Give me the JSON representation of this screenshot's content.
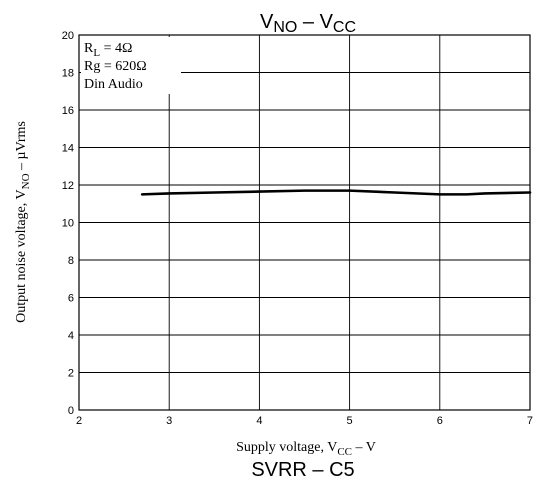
{
  "chart_data": {
    "type": "line",
    "title_main": "V",
    "title_main_sub": "NO",
    "title_sep": " – ",
    "title_second": "V",
    "title_second_sub": "CC",
    "xlabel_prefix": "Supply voltage, V",
    "xlabel_sub": "CC",
    "xlabel_suffix": " – V",
    "ylabel_prefix": "Output noise voltage, V",
    "ylabel_sub": "NO",
    "ylabel_suffix": " – µVrms",
    "xlim": [
      2,
      7
    ],
    "ylim": [
      0,
      20
    ],
    "xticks": [
      2,
      3,
      4,
      5,
      6,
      7
    ],
    "yticks": [
      0,
      2,
      4,
      6,
      8,
      10,
      12,
      14,
      16,
      18,
      20
    ],
    "grid": true,
    "series": [
      {
        "x": [
          2.7,
          3.0,
          3.5,
          4.0,
          4.5,
          5.0,
          5.5,
          6.0,
          6.3,
          6.5,
          7.0
        ],
        "y": [
          11.5,
          11.55,
          11.6,
          11.65,
          11.7,
          11.7,
          11.6,
          11.5,
          11.5,
          11.55,
          11.6
        ]
      }
    ],
    "annotations": [
      {
        "prefix": "R",
        "sub": "L",
        "suffix": " = 4Ω"
      },
      {
        "prefix": "Rg = 620Ω",
        "sub": "",
        "suffix": ""
      },
      {
        "prefix": "Din Audio",
        "sub": "",
        "suffix": ""
      }
    ]
  },
  "footer_title": "SVRR – C5",
  "line_color": "#000000",
  "grid_color": "#000000"
}
